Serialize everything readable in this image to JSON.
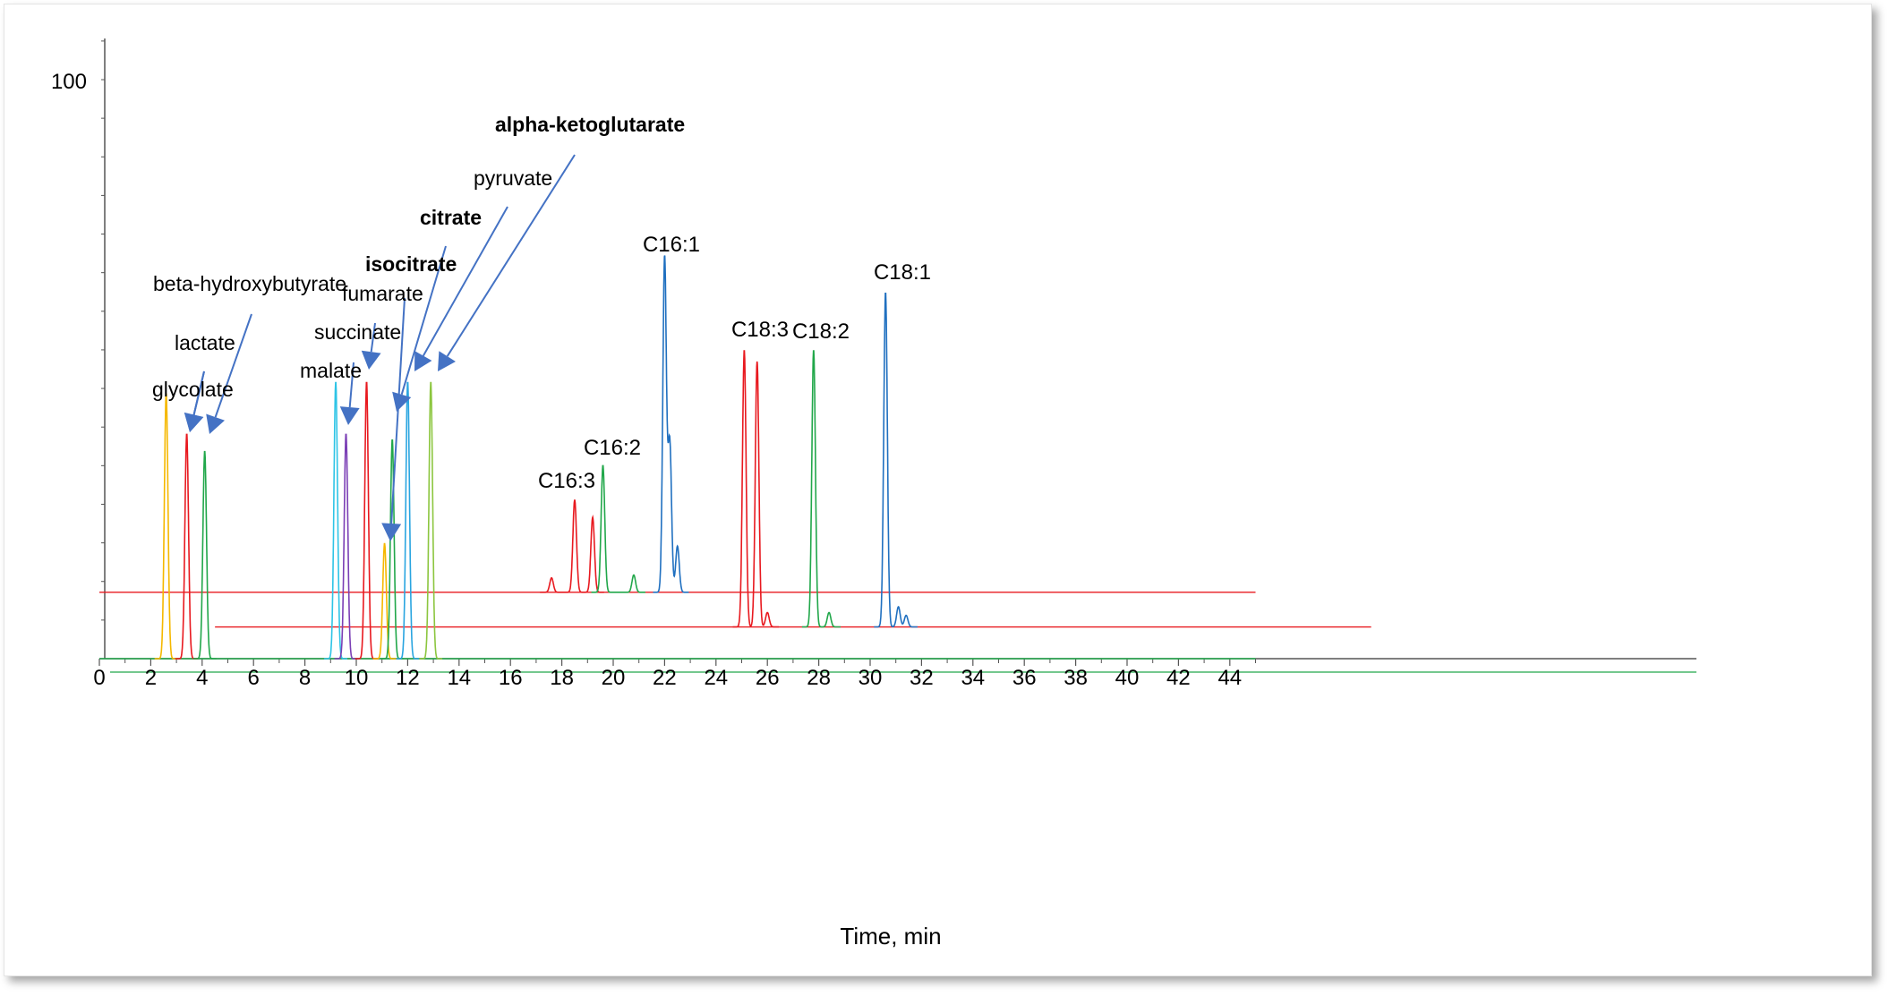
{
  "chart_data": {
    "type": "line",
    "title": "",
    "xlabel": "Time, min",
    "ylabel": "",
    "xlim": [
      0,
      45
    ],
    "ylim": [
      0,
      100
    ],
    "x_ticks": [
      "0",
      "2",
      "4",
      "6",
      "8",
      "10",
      "12",
      "14",
      "16",
      "18",
      "20",
      "22",
      "24",
      "26",
      "28",
      "30",
      "32",
      "34",
      "36",
      "38",
      "40",
      "42",
      "44"
    ],
    "y_ticks": [
      "100"
    ],
    "traces": [
      {
        "offset": 0,
        "color": "#f5b800",
        "peaks": [
          [
            2.6,
            46
          ]
        ]
      },
      {
        "offset": 0,
        "color": "#e8191f",
        "peaks": [
          [
            3.4,
            39
          ]
        ]
      },
      {
        "offset": 0,
        "color": "#21a74a",
        "peaks": [
          [
            4.1,
            36
          ]
        ]
      },
      {
        "offset": 0,
        "color": "#2ec4e6",
        "peaks": [
          [
            9.2,
            48
          ]
        ]
      },
      {
        "offset": 0,
        "color": "#7b3fb5",
        "peaks": [
          [
            9.6,
            39
          ]
        ]
      },
      {
        "offset": 0,
        "color": "#e8191f",
        "peaks": [
          [
            10.4,
            48
          ]
        ]
      },
      {
        "offset": 0,
        "color": "#f5b800",
        "peaks": [
          [
            11.1,
            20
          ]
        ]
      },
      {
        "offset": 0,
        "color": "#21a74a",
        "peaks": [
          [
            11.4,
            38
          ]
        ]
      },
      {
        "offset": 0,
        "color": "#2aa5e0",
        "peaks": [
          [
            12.0,
            48
          ]
        ]
      },
      {
        "offset": 0,
        "color": "#8cc63f",
        "peaks": [
          [
            12.9,
            48
          ]
        ]
      },
      {
        "offset": 11.5,
        "color": "#e8191f",
        "peaks": [
          [
            17.6,
            2.5
          ],
          [
            18.5,
            16
          ],
          [
            19.2,
            13
          ]
        ]
      },
      {
        "offset": 11.5,
        "color": "#21a74a",
        "peaks": [
          [
            19.6,
            22
          ],
          [
            20.8,
            3
          ]
        ]
      },
      {
        "offset": 11.5,
        "color": "#2070c0",
        "peaks": [
          [
            22.0,
            58
          ],
          [
            22.2,
            26
          ],
          [
            22.5,
            8
          ]
        ]
      },
      {
        "offset": 5.5,
        "color": "#e8191f",
        "peaks": [
          [
            25.1,
            48
          ],
          [
            25.6,
            46
          ],
          [
            26.0,
            2.5
          ]
        ]
      },
      {
        "offset": 5.5,
        "color": "#21a74a",
        "peaks": [
          [
            27.8,
            48
          ],
          [
            28.4,
            2.5
          ]
        ]
      },
      {
        "offset": 5.5,
        "color": "#2070c0",
        "peaks": [
          [
            30.6,
            58
          ],
          [
            31.1,
            3.5
          ],
          [
            31.4,
            2
          ]
        ]
      }
    ],
    "baselines": [
      {
        "color": "#e8191f",
        "y": 11.5,
        "x_start": 0,
        "x_end": 45
      },
      {
        "color": "#e8191f",
        "y": 5.5,
        "x_start": 4.5,
        "x_end": 49.5
      },
      {
        "color": "#21a74a",
        "y": 0,
        "x_start": 0,
        "x_end": 45
      }
    ],
    "annotations": [
      {
        "text": "glycolate",
        "bold": false
      },
      {
        "text": "lactate",
        "bold": false
      },
      {
        "text": "beta-hydroxybutyrate",
        "bold": false
      },
      {
        "text": "malate",
        "bold": false
      },
      {
        "text": "succinate",
        "bold": false
      },
      {
        "text": "fumarate",
        "bold": false
      },
      {
        "text": "isocitrate",
        "bold": true
      },
      {
        "text": "citrate",
        "bold": true
      },
      {
        "text": "pyruvate",
        "bold": false
      },
      {
        "text": "alpha-ketoglutarate",
        "bold": true
      }
    ],
    "peak_labels": [
      "C16:3",
      "C16:2",
      "C16:1",
      "C18:3",
      "C18:2",
      "C18:1"
    ],
    "colors": {
      "arrow": "#4472c4",
      "axis": "#555555"
    }
  }
}
